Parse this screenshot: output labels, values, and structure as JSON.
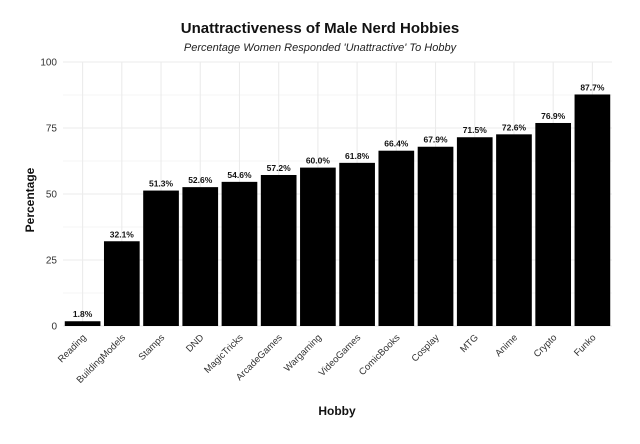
{
  "chart_data": {
    "type": "bar",
    "title": "Unattractiveness of Male Nerd Hobbies",
    "subtitle": "Percentage Women Responded 'Unattractive' To Hobby",
    "xlabel": "Hobby",
    "ylabel": "Percentage",
    "categories": [
      "Reading",
      "BuildingModels",
      "Stamps",
      "DND",
      "MagicTricks",
      "ArcadeGames",
      "Wargaming",
      "VideoGames",
      "ComicBooks",
      "Cosplay",
      "MTG",
      "Anime",
      "Crypto",
      "Funko"
    ],
    "values": [
      1.8,
      32.1,
      51.3,
      52.6,
      54.6,
      57.2,
      60.0,
      61.8,
      66.4,
      67.9,
      71.5,
      72.6,
      76.9,
      87.7
    ],
    "data_labels": [
      "1.8%",
      "32.1%",
      "51.3%",
      "52.6%",
      "54.6%",
      "57.2%",
      "60.0%",
      "61.8%",
      "66.4%",
      "67.9%",
      "71.5%",
      "72.6%",
      "76.9%",
      "87.7%"
    ],
    "ylim": [
      0,
      100
    ],
    "yticks": [
      0,
      25,
      50,
      75,
      100
    ],
    "grid": true,
    "bar_color": "#000000",
    "grid_color": "#ebebeb"
  }
}
